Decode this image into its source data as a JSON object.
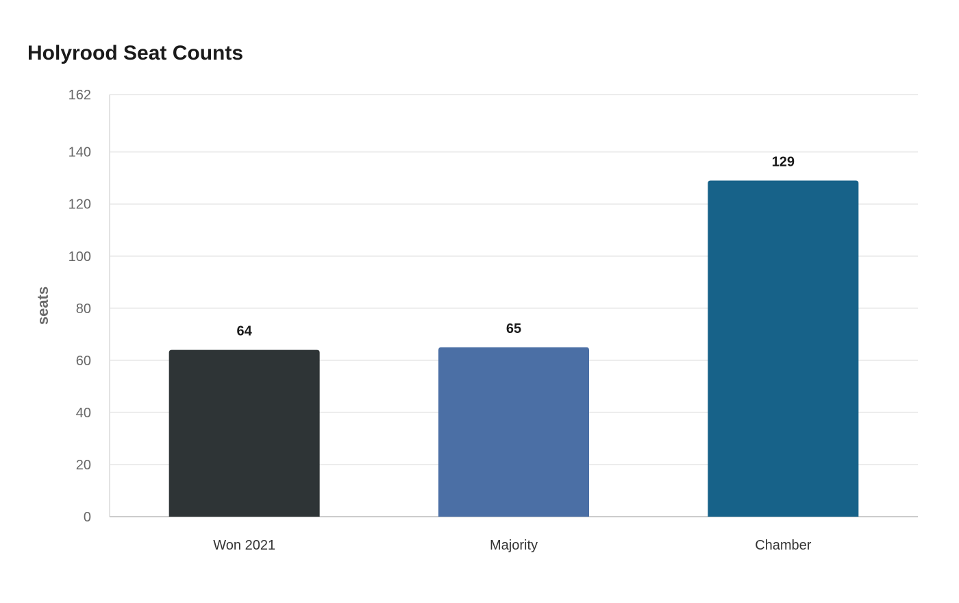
{
  "title": "Holyrood Seat Counts",
  "chart_data": {
    "type": "bar",
    "title": "Holyrood Seat Counts",
    "xlabel": "",
    "ylabel": "seats",
    "categories": [
      "Won 2021",
      "Majority",
      "Chamber"
    ],
    "values": [
      64,
      65,
      129
    ],
    "colors": [
      "#2e3436",
      "#4b6fa5",
      "#176289"
    ],
    "ylim": [
      0,
      162
    ],
    "yticks": [
      0,
      20,
      40,
      60,
      80,
      100,
      120,
      140,
      162
    ],
    "grid": true,
    "legend": "none",
    "data_labels": true
  }
}
